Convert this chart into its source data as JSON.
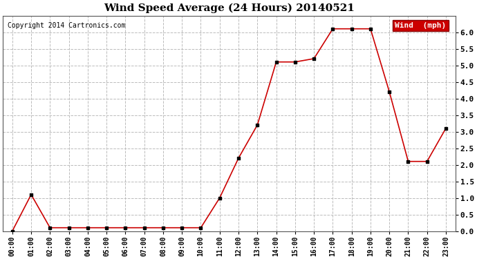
{
  "title": "Wind Speed Average (24 Hours) 20140521",
  "copyright": "Copyright 2014 Cartronics.com",
  "legend_label": "Wind  (mph)",
  "x_labels": [
    "00:00",
    "01:00",
    "02:00",
    "03:00",
    "04:00",
    "05:00",
    "06:00",
    "07:00",
    "08:00",
    "09:00",
    "10:00",
    "11:00",
    "12:00",
    "13:00",
    "14:00",
    "15:00",
    "16:00",
    "17:00",
    "18:00",
    "19:00",
    "20:00",
    "21:00",
    "22:00",
    "23:00"
  ],
  "y_values": [
    0.0,
    1.1,
    0.1,
    0.1,
    0.1,
    0.1,
    0.1,
    0.1,
    0.1,
    0.1,
    0.1,
    1.0,
    2.2,
    3.2,
    5.1,
    5.1,
    5.2,
    6.1,
    6.1,
    6.1,
    4.2,
    2.1,
    2.1,
    3.1
  ],
  "ylim": [
    0.0,
    6.5
  ],
  "yticks": [
    0.0,
    0.5,
    1.0,
    1.5,
    2.0,
    2.5,
    3.0,
    3.5,
    4.0,
    4.5,
    5.0,
    5.5,
    6.0
  ],
  "line_color": "#cc0000",
  "marker_color": "#000000",
  "bg_color": "#ffffff",
  "grid_color": "#bbbbbb",
  "title_fontsize": 11,
  "copyright_fontsize": 7,
  "legend_bg": "#cc0000",
  "legend_fg": "#ffffff"
}
